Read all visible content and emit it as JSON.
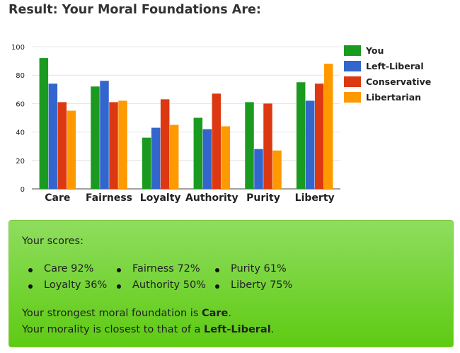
{
  "title": "Result: Your Moral Foundations Are:",
  "chart_data": {
    "type": "bar",
    "categories": [
      "Care",
      "Fairness",
      "Loyalty",
      "Authority",
      "Purity",
      "Liberty"
    ],
    "series": [
      {
        "name": "You",
        "color": "#1a9b20",
        "values": [
          92,
          72,
          36,
          50,
          61,
          75
        ]
      },
      {
        "name": "Left-Liberal",
        "color": "#3366cc",
        "values": [
          74,
          76,
          43,
          42,
          28,
          62
        ]
      },
      {
        "name": "Conservative",
        "color": "#dc3912",
        "values": [
          61,
          61,
          63,
          67,
          60,
          74
        ]
      },
      {
        "name": "Libertarian",
        "color": "#ff9900",
        "values": [
          55,
          62,
          45,
          44,
          27,
          88
        ]
      }
    ],
    "ylim": [
      0,
      100
    ],
    "yticks": [
      "0",
      "20",
      "40",
      "60",
      "80",
      "100"
    ],
    "legend_position": "right",
    "grid": true
  },
  "results": {
    "heading": "Your scores:",
    "scores": [
      "Care 92%",
      "Fairness 72%",
      "Purity 61%",
      "Loyalty 36%",
      "Authority 50%",
      "Liberty 75%"
    ],
    "strongest_prefix": "Your strongest moral foundation is ",
    "strongest_value": "Care",
    "closest_prefix": "Your morality is closest to that of a ",
    "closest_value": "Left-Liberal"
  }
}
